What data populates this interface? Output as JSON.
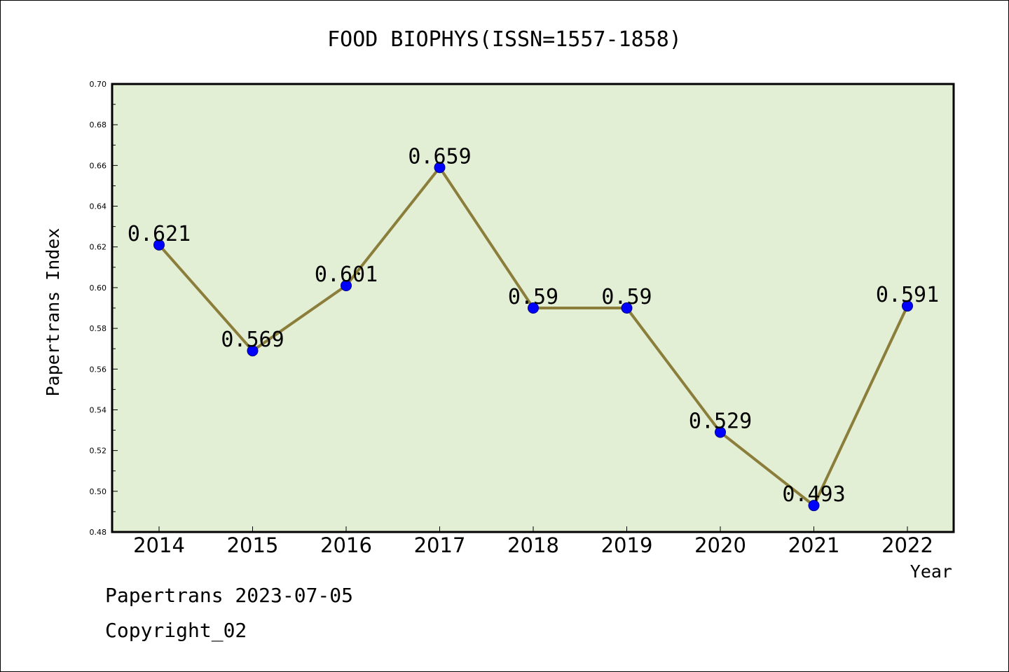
{
  "chart_data": {
    "type": "line",
    "title": "FOOD BIOPHYS(ISSN=1557-1858)",
    "xlabel": "Year",
    "ylabel": "Papertrans Index",
    "categories": [
      "2014",
      "2015",
      "2016",
      "2017",
      "2018",
      "2019",
      "2020",
      "2021",
      "2022"
    ],
    "series": [
      {
        "values": [
          0.621,
          0.569,
          0.601,
          0.659,
          0.59,
          0.59,
          0.529,
          0.493,
          0.591
        ]
      }
    ],
    "data_labels": [
      "0.621",
      "0.569",
      "0.601",
      "0.659",
      "0.59",
      "0.59",
      "0.529",
      "0.493",
      "0.591"
    ],
    "ylim": [
      0.48,
      0.7
    ],
    "yticks": [
      "0.48",
      "0.50",
      "0.52",
      "0.54",
      "0.56",
      "0.58",
      "0.60",
      "0.62",
      "0.64",
      "0.66",
      "0.68",
      "0.70"
    ],
    "grid": false,
    "legend": "none",
    "colors": {
      "plot_background": "#e2efd5",
      "line": "#8b7d3a",
      "marker": "#0000ff"
    }
  },
  "footer": {
    "source": "Papertrans 2023-07-05",
    "copyright": "Copyright_02"
  }
}
